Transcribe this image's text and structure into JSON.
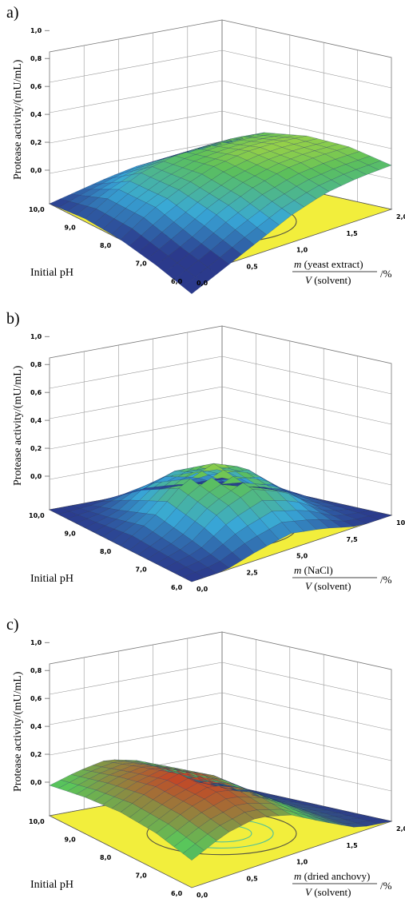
{
  "chart_data": [
    {
      "panel_label": "a)",
      "type": "surface",
      "zlabel": "Protease activity/(mU/mL)",
      "z_ticks": [
        "1,0",
        "0,8",
        "0,6",
        "0,4",
        "0,2",
        "0,0"
      ],
      "zlim": [
        0,
        1.0
      ],
      "ph_label": "Initial pH",
      "ph_ticks": [
        "10,0",
        "9,0",
        "8,0",
        "7,0",
        "6,0"
      ],
      "ph_range": [
        6.0,
        10.0
      ],
      "x_label_num_italic": "m",
      "x_label_num": "(yeast extract)",
      "x_label_den_italic": "V",
      "x_label_den": "(solvent)",
      "x_label_unit": "/%",
      "x_ticks": [
        "0,0",
        "0,5",
        "1,0",
        "1,5",
        "2,0"
      ],
      "x_range": [
        0.0,
        2.0
      ],
      "surface_grid_z": [
        [
          0.0,
          0.05,
          0.1,
          0.14,
          0.16,
          0.17,
          0.18
        ],
        [
          0.02,
          0.15,
          0.25,
          0.3,
          0.32,
          0.33,
          0.32
        ],
        [
          0.0,
          0.14,
          0.24,
          0.32,
          0.36,
          0.37,
          0.36
        ],
        [
          -0.05,
          0.05,
          0.18,
          0.27,
          0.33,
          0.35,
          0.35
        ],
        [
          -0.12,
          -0.02,
          0.08,
          0.18,
          0.25,
          0.28,
          0.29
        ]
      ],
      "colors": {
        "floor": "#f2ee3c",
        "low": "#2b3a8c",
        "high": "#f2ea2e"
      }
    },
    {
      "panel_label": "b)",
      "type": "surface",
      "zlabel": "Protease activity/(mU/mL)",
      "z_ticks": [
        "1,0",
        "0,8",
        "0,6",
        "0,4",
        "0,2",
        "0,0"
      ],
      "zlim": [
        0,
        1.0
      ],
      "ph_label": "Initial pH",
      "ph_ticks": [
        "10,0",
        "9,0",
        "8,0",
        "7,0",
        "6,0"
      ],
      "ph_range": [
        6.0,
        10.0
      ],
      "x_label_num_italic": "m",
      "x_label_num": "(NaCl)",
      "x_label_den_italic": "V",
      "x_label_den": "(solvent)",
      "x_label_unit": "/%",
      "x_ticks": [
        "0,0",
        "2,5",
        "5,0",
        "7,5",
        "10,0"
      ],
      "x_range": [
        0.0,
        10.0
      ],
      "surface_grid_z": [
        [
          0.0,
          0.0,
          0.0,
          0.0,
          0.0,
          0.0,
          0.0
        ],
        [
          0.0,
          0.05,
          0.18,
          0.24,
          0.18,
          0.05,
          0.0
        ],
        [
          0.0,
          0.12,
          0.3,
          0.38,
          0.3,
          0.12,
          0.0
        ],
        [
          0.0,
          0.06,
          0.22,
          0.3,
          0.22,
          0.06,
          0.0
        ],
        [
          0.0,
          0.0,
          0.06,
          0.1,
          0.06,
          0.0,
          0.0
        ]
      ],
      "colors": {
        "floor": "#f2ee3c",
        "low": "#2b3a8c",
        "high": "#f2ea2e"
      }
    },
    {
      "panel_label": "c)",
      "type": "surface",
      "zlabel": "Protease activity/(mU/mL)",
      "z_ticks": [
        "1,0",
        "0,8",
        "0,6",
        "0,4",
        "0,2",
        "0,0"
      ],
      "zlim": [
        0,
        1.0
      ],
      "ph_label": "Initial pH",
      "ph_ticks": [
        "10,0",
        "9,0",
        "8,0",
        "7,0",
        "6,0"
      ],
      "ph_range": [
        6.0,
        10.0
      ],
      "x_label_num_italic": "m",
      "x_label_num": "(dried anchovy)",
      "x_label_den_italic": "V",
      "x_label_den": "(solvent)",
      "x_label_unit": "/%",
      "x_ticks": [
        "0,0",
        "0,5",
        "1,0",
        "1,5",
        "2,0"
      ],
      "x_range": [
        0.0,
        2.0
      ],
      "surface_grid_z": [
        [
          0.2,
          0.26,
          0.3,
          0.26,
          0.16,
          0.05,
          0.0
        ],
        [
          0.24,
          0.32,
          0.36,
          0.3,
          0.18,
          0.06,
          0.0
        ],
        [
          0.26,
          0.36,
          0.42,
          0.34,
          0.2,
          0.06,
          0.0
        ],
        [
          0.24,
          0.34,
          0.4,
          0.32,
          0.18,
          0.05,
          0.0
        ],
        [
          0.18,
          0.28,
          0.32,
          0.26,
          0.14,
          0.03,
          0.0
        ]
      ],
      "colors": {
        "floor": "#f2ee3c",
        "low": "#2b3a8c",
        "mid": "#5ac85a",
        "high": "#e02418"
      }
    }
  ]
}
